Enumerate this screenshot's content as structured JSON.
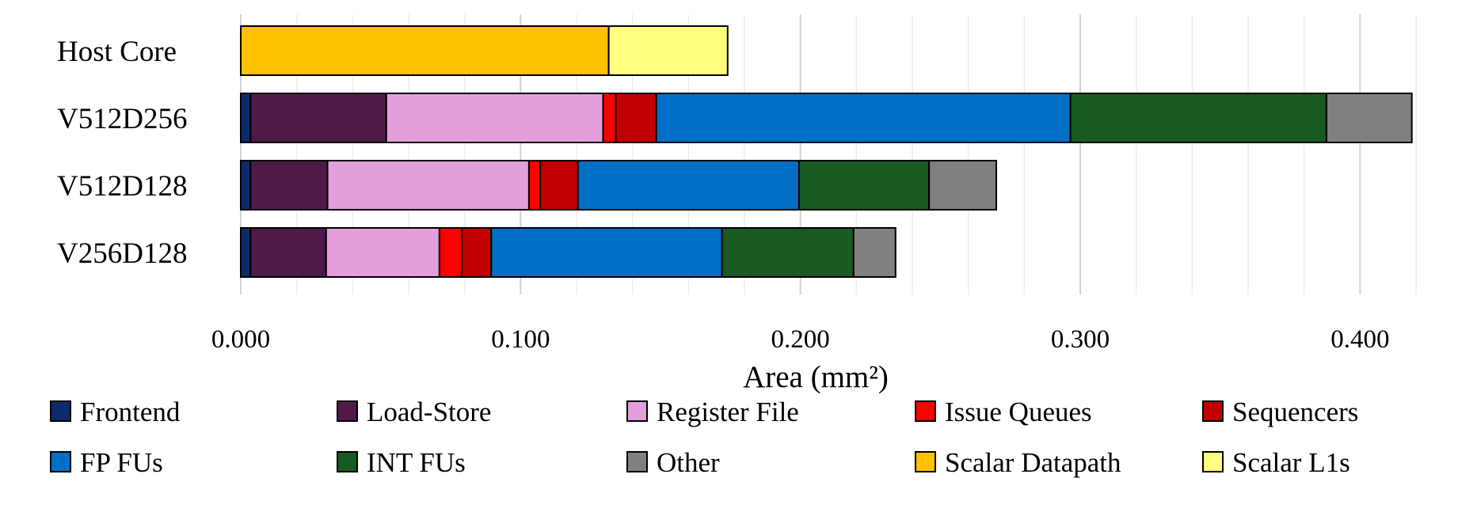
{
  "chart_data": {
    "type": "bar",
    "orientation": "horizontal",
    "stacked": true,
    "categories": [
      "Host Core",
      "V512D256",
      "V512D128",
      "V256D128"
    ],
    "xlabel": "Area (mm²)",
    "ylabel": "",
    "title": "",
    "xlim": [
      0,
      0.42
    ],
    "xticks": [
      0.0,
      0.1,
      0.2,
      0.3,
      0.4
    ],
    "xtick_labels": [
      "0.000",
      "0.100",
      "0.200",
      "0.300",
      "0.400"
    ],
    "grid": "vertical",
    "legend_position": "bottom",
    "series": [
      {
        "name": "Frontend",
        "color": "#0d2a6b",
        "values": [
          0,
          0.0035,
          0.0035,
          0.0035
        ]
      },
      {
        "name": "Load-Store",
        "color": "#4f1a47",
        "values": [
          0,
          0.0485,
          0.0275,
          0.027
        ]
      },
      {
        "name": "Register File",
        "color": "#e59edc",
        "values": [
          0,
          0.0775,
          0.072,
          0.0405
        ]
      },
      {
        "name": "Issue Queues",
        "color": "#ff0000",
        "values": [
          0,
          0.0045,
          0.004,
          0.008
        ]
      },
      {
        "name": "Sequencers",
        "color": "#c00000",
        "values": [
          0,
          0.0145,
          0.0135,
          0.0105
        ]
      },
      {
        "name": "FP FUs",
        "color": "#0070c6",
        "values": [
          0,
          0.148,
          0.079,
          0.0825
        ]
      },
      {
        "name": "INT FUs",
        "color": "#185a22",
        "values": [
          0,
          0.0915,
          0.0465,
          0.047
        ]
      },
      {
        "name": "Other",
        "color": "#808080",
        "values": [
          0,
          0.0305,
          0.024,
          0.015
        ]
      },
      {
        "name": "Scalar Datapath",
        "color": "#ffc000",
        "values": [
          0.1315,
          0,
          0,
          0
        ]
      },
      {
        "name": "Scalar L1s",
        "color": "#ffff7f",
        "values": [
          0.0425,
          0,
          0,
          0
        ]
      }
    ]
  }
}
